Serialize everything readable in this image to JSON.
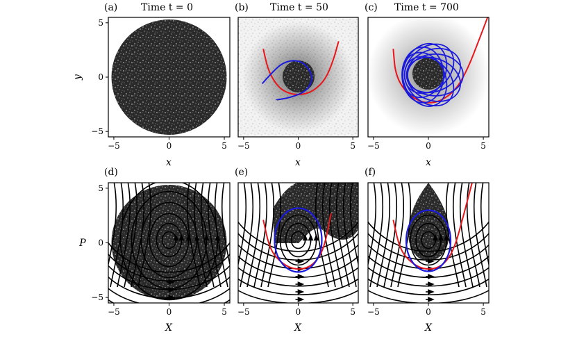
{
  "figure": {
    "panels": [
      {
        "id": "a",
        "label": "(a)",
        "title": "Time t = 0"
      },
      {
        "id": "b",
        "label": "(b)",
        "title": "Time t = 50"
      },
      {
        "id": "c",
        "label": "(c)",
        "title": "Time t = 700"
      },
      {
        "id": "d",
        "label": "(d)",
        "title": ""
      },
      {
        "id": "e",
        "label": "(e)",
        "title": ""
      },
      {
        "id": "f",
        "label": "(f)",
        "title": ""
      }
    ],
    "top_xlabel": "x",
    "top_ylabel": "y",
    "bottom_xlabel": "X",
    "bottom_ylabel": "P"
  },
  "chart_data": [
    {
      "panel": "a",
      "type": "scatter",
      "title": "Time t = 0",
      "xlabel": "x",
      "ylabel": "y",
      "xlim": [
        -5.5,
        5.5
      ],
      "ylim": [
        -5.5,
        5.5
      ],
      "xticks": [
        -5,
        0,
        5
      ],
      "yticks": [
        -5,
        0,
        5
      ],
      "description_points": "uniform disk of radius 5.3",
      "curves": []
    },
    {
      "panel": "b",
      "type": "scatter",
      "title": "Time t = 50",
      "xlabel": "x",
      "ylabel": "",
      "xlim": [
        -5.5,
        5.5
      ],
      "ylim": [
        -5.5,
        5.5
      ],
      "xticks": [
        -5,
        0,
        5
      ],
      "yticks": [],
      "curves": [
        {
          "color": "#e8161b",
          "x": [
            -3.2,
            -2.8,
            -2.2,
            -1.5,
            -0.5,
            0.5,
            1.5,
            2.5,
            3.2,
            3.7
          ],
          "y": [
            2.6,
            0.8,
            -0.4,
            -1.2,
            -1.6,
            -1.6,
            -1.2,
            -0.2,
            1.5,
            3.3
          ]
        },
        {
          "color": "#1a1adc",
          "x": [
            -3.3,
            -2.5,
            -1.6,
            -0.5,
            0.6,
            1.4,
            0.8,
            -0.8,
            -2.0
          ],
          "y": [
            -0.6,
            0.3,
            1.2,
            1.6,
            1.3,
            0.0,
            -1.3,
            -1.9,
            -2.1
          ]
        }
      ]
    },
    {
      "panel": "c",
      "type": "scatter",
      "title": "Time t = 700",
      "xlabel": "x",
      "ylabel": "",
      "xlim": [
        -5.5,
        5.5
      ],
      "ylim": [
        -5.5,
        5.5
      ],
      "xticks": [
        -5,
        0,
        5
      ],
      "yticks": [],
      "curves": [
        {
          "color": "#e8161b",
          "x": [
            -3.2,
            -3.0,
            -2.0,
            -0.5,
            1.0,
            2.5,
            3.6,
            4.6,
            5.5
          ],
          "y": [
            2.6,
            0.2,
            -1.5,
            -2.4,
            -2.3,
            -1.2,
            0.8,
            3.4,
            5.8
          ]
        },
        {
          "color": "#1a1adc",
          "description": "blue orbit rosette, radius ~3.3"
        }
      ]
    },
    {
      "panel": "d",
      "type": "streamplot",
      "xlabel": "X",
      "ylabel": "P",
      "xlim": [
        -5.5,
        5.5
      ],
      "ylim": [
        -5.5,
        5.5
      ],
      "xticks": [
        -5,
        0,
        5
      ],
      "yticks": [
        -5,
        0,
        5
      ],
      "description_points": "uniform disk of radius 5.3"
    },
    {
      "panel": "e",
      "type": "streamplot",
      "xlabel": "X",
      "ylabel": "",
      "xlim": [
        -5.5,
        5.5
      ],
      "ylim": [
        -5.5,
        5.5
      ],
      "xticks": [
        -5,
        0,
        5
      ],
      "yticks": [],
      "curves": [
        {
          "color": "#e8161b",
          "x": [
            -3.2,
            -2.6,
            -1.6,
            -0.5,
            0.6,
            1.6,
            2.4,
            3.0
          ],
          "y": [
            2.1,
            -0.6,
            -1.8,
            -2.4,
            -2.4,
            -1.8,
            -0.4,
            2.7
          ]
        },
        {
          "color": "#1a1adc",
          "description": "closed orbit around origin, Xr 2.2, Pr 3.1"
        }
      ]
    },
    {
      "panel": "f",
      "type": "streamplot",
      "xlabel": "X",
      "ylabel": "",
      "xlim": [
        -5.5,
        5.5
      ],
      "ylim": [
        -5.5,
        5.5
      ],
      "xticks": [
        -5,
        0,
        5
      ],
      "yticks": [],
      "curves": [
        {
          "color": "#e8161b",
          "x": [
            -3.2,
            -2.6,
            -1.6,
            -0.5,
            0.6,
            1.6,
            2.4,
            3.2,
            4.0
          ],
          "y": [
            2.1,
            -0.6,
            -1.8,
            -2.4,
            -2.4,
            -1.8,
            -0.4,
            2.5,
            5.6
          ]
        },
        {
          "color": "#1a1adc",
          "description": "closed orbit around origin, Xr 2.2, Pr 3.0"
        }
      ]
    }
  ]
}
